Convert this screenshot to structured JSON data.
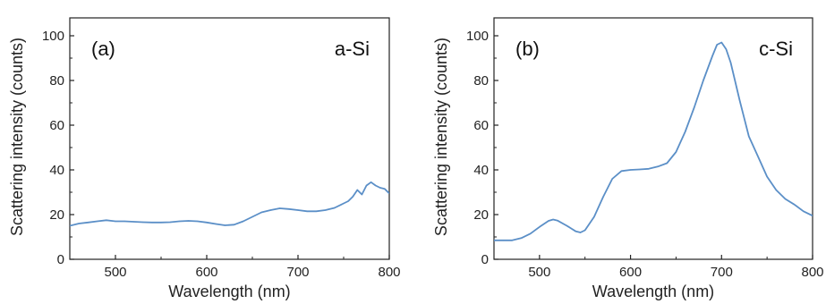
{
  "chart_data": [
    {
      "type": "line",
      "panel_label": "(a)",
      "sample_label": "a-Si",
      "xlabel": "Wavelength (nm)",
      "ylabel": "Scattering intensity (counts)",
      "xlim": [
        450,
        800
      ],
      "ylim": [
        0,
        108
      ],
      "xticks": [
        500,
        600,
        700,
        800
      ],
      "yticks": [
        0,
        20,
        40,
        60,
        80,
        100
      ],
      "line_color": "#5b8fc7",
      "grid": false,
      "series": [
        {
          "x": [
            450,
            460,
            470,
            480,
            490,
            500,
            510,
            520,
            530,
            540,
            550,
            560,
            570,
            580,
            590,
            600,
            610,
            620,
            630,
            640,
            650,
            660,
            670,
            680,
            690,
            700,
            710,
            720,
            730,
            740,
            750,
            755,
            760,
            765,
            770,
            775,
            780,
            785,
            790,
            795,
            800
          ],
          "values": [
            15,
            16,
            16.5,
            17,
            17.5,
            17,
            17,
            16.8,
            16.6,
            16.5,
            16.5,
            16.6,
            17,
            17.2,
            17,
            16.5,
            15.8,
            15.2,
            15.5,
            17,
            19,
            21,
            22,
            22.8,
            22.5,
            22,
            21.5,
            21.5,
            22,
            23,
            25,
            26,
            28,
            31,
            29,
            33,
            34.5,
            33,
            32,
            31.5,
            29.5
          ]
        }
      ]
    },
    {
      "type": "line",
      "panel_label": "(b)",
      "sample_label": "c-Si",
      "xlabel": "Wavelength (nm)",
      "ylabel": "Scattering intensity (counts)",
      "xlim": [
        450,
        800
      ],
      "ylim": [
        0,
        108
      ],
      "xticks": [
        500,
        600,
        700,
        800
      ],
      "yticks": [
        0,
        20,
        40,
        60,
        80,
        100
      ],
      "line_color": "#5b8fc7",
      "grid": false,
      "series": [
        {
          "x": [
            450,
            460,
            470,
            480,
            490,
            500,
            510,
            515,
            520,
            530,
            540,
            545,
            550,
            560,
            570,
            580,
            590,
            600,
            610,
            620,
            630,
            640,
            650,
            660,
            670,
            680,
            690,
            695,
            700,
            705,
            710,
            720,
            730,
            740,
            750,
            760,
            770,
            780,
            790,
            800
          ],
          "values": [
            8.5,
            8.5,
            8.5,
            9.5,
            11.5,
            14.5,
            17.2,
            17.8,
            17.3,
            15,
            12.5,
            12,
            13,
            19,
            28,
            36,
            39.5,
            40,
            40.2,
            40.5,
            41.5,
            43,
            48,
            57,
            68,
            80,
            91,
            96,
            97,
            94,
            88,
            71,
            55,
            46,
            37,
            31,
            27,
            24.5,
            21.5,
            19.5
          ]
        }
      ]
    }
  ]
}
